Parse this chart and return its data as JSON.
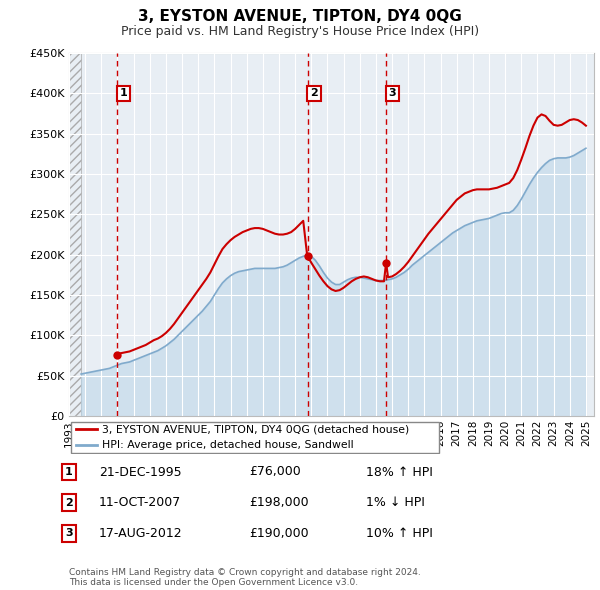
{
  "title": "3, EYSTON AVENUE, TIPTON, DY4 0QG",
  "subtitle": "Price paid vs. HM Land Registry's House Price Index (HPI)",
  "legend_line1": "3, EYSTON AVENUE, TIPTON, DY4 0QG (detached house)",
  "legend_line2": "HPI: Average price, detached house, Sandwell",
  "sale_color": "#cc0000",
  "hpi_color": "#80aacc",
  "hpi_fill_color": "#b8d4e8",
  "hatch_color": "#cccccc",
  "grid_color": "#c8d8e8",
  "bg_color": "#e8eef4",
  "annotation_box_color": "#cc0000",
  "sales": [
    {
      "label": "1",
      "date": "21-DEC-1995",
      "price": 76000,
      "year_x": 1995.97,
      "pct": "18% ↑ HPI"
    },
    {
      "label": "2",
      "date": "11-OCT-2007",
      "price": 198000,
      "year_x": 2007.78,
      "pct": "1% ↓ HPI"
    },
    {
      "label": "3",
      "date": "17-AUG-2012",
      "price": 190000,
      "year_x": 2012.63,
      "pct": "10% ↑ HPI"
    }
  ],
  "ylim": [
    0,
    450000
  ],
  "yticks": [
    0,
    50000,
    100000,
    150000,
    200000,
    250000,
    300000,
    350000,
    400000,
    450000
  ],
  "ytick_labels": [
    "£0",
    "£50K",
    "£100K",
    "£150K",
    "£200K",
    "£250K",
    "£300K",
    "£350K",
    "£400K",
    "£450K"
  ],
  "xlim_start": 1993.0,
  "xlim_end": 2025.5,
  "hatch_end": 1993.75,
  "footer": "Contains HM Land Registry data © Crown copyright and database right 2024.\nThis data is licensed under the Open Government Licence v3.0.",
  "hpi_data": [
    [
      1993.75,
      52000
    ],
    [
      1994.0,
      53000
    ],
    [
      1994.25,
      54000
    ],
    [
      1994.5,
      55000
    ],
    [
      1994.75,
      56000
    ],
    [
      1995.0,
      57000
    ],
    [
      1995.25,
      58000
    ],
    [
      1995.5,
      59000
    ],
    [
      1995.75,
      61000
    ],
    [
      1996.0,
      63000
    ],
    [
      1996.25,
      65000
    ],
    [
      1996.5,
      66000
    ],
    [
      1996.75,
      67000
    ],
    [
      1997.0,
      69000
    ],
    [
      1997.25,
      71000
    ],
    [
      1997.5,
      73000
    ],
    [
      1997.75,
      75000
    ],
    [
      1998.0,
      77000
    ],
    [
      1998.25,
      79000
    ],
    [
      1998.5,
      81000
    ],
    [
      1998.75,
      84000
    ],
    [
      1999.0,
      87000
    ],
    [
      1999.25,
      91000
    ],
    [
      1999.5,
      95000
    ],
    [
      1999.75,
      100000
    ],
    [
      2000.0,
      105000
    ],
    [
      2000.25,
      110000
    ],
    [
      2000.5,
      115000
    ],
    [
      2000.75,
      120000
    ],
    [
      2001.0,
      125000
    ],
    [
      2001.25,
      130000
    ],
    [
      2001.5,
      136000
    ],
    [
      2001.75,
      142000
    ],
    [
      2002.0,
      150000
    ],
    [
      2002.25,
      158000
    ],
    [
      2002.5,
      165000
    ],
    [
      2002.75,
      170000
    ],
    [
      2003.0,
      174000
    ],
    [
      2003.25,
      177000
    ],
    [
      2003.5,
      179000
    ],
    [
      2003.75,
      180000
    ],
    [
      2004.0,
      181000
    ],
    [
      2004.25,
      182000
    ],
    [
      2004.5,
      183000
    ],
    [
      2004.75,
      183000
    ],
    [
      2005.0,
      183000
    ],
    [
      2005.25,
      183000
    ],
    [
      2005.5,
      183000
    ],
    [
      2005.75,
      183000
    ],
    [
      2006.0,
      184000
    ],
    [
      2006.25,
      185000
    ],
    [
      2006.5,
      187000
    ],
    [
      2006.75,
      190000
    ],
    [
      2007.0,
      193000
    ],
    [
      2007.25,
      196000
    ],
    [
      2007.5,
      198000
    ],
    [
      2007.75,
      199000
    ],
    [
      2008.0,
      198000
    ],
    [
      2008.25,
      193000
    ],
    [
      2008.5,
      186000
    ],
    [
      2008.75,
      178000
    ],
    [
      2009.0,
      171000
    ],
    [
      2009.25,
      166000
    ],
    [
      2009.5,
      163000
    ],
    [
      2009.75,
      163000
    ],
    [
      2010.0,
      166000
    ],
    [
      2010.25,
      169000
    ],
    [
      2010.5,
      171000
    ],
    [
      2010.75,
      172000
    ],
    [
      2011.0,
      172000
    ],
    [
      2011.25,
      171000
    ],
    [
      2011.5,
      170000
    ],
    [
      2011.75,
      169000
    ],
    [
      2012.0,
      168000
    ],
    [
      2012.25,
      168000
    ],
    [
      2012.5,
      168000
    ],
    [
      2012.75,
      169000
    ],
    [
      2013.0,
      170000
    ],
    [
      2013.25,
      172000
    ],
    [
      2013.5,
      175000
    ],
    [
      2013.75,
      178000
    ],
    [
      2014.0,
      182000
    ],
    [
      2014.25,
      187000
    ],
    [
      2014.5,
      191000
    ],
    [
      2014.75,
      195000
    ],
    [
      2015.0,
      199000
    ],
    [
      2015.25,
      203000
    ],
    [
      2015.5,
      207000
    ],
    [
      2015.75,
      211000
    ],
    [
      2016.0,
      215000
    ],
    [
      2016.25,
      219000
    ],
    [
      2016.5,
      223000
    ],
    [
      2016.75,
      227000
    ],
    [
      2017.0,
      230000
    ],
    [
      2017.25,
      233000
    ],
    [
      2017.5,
      236000
    ],
    [
      2017.75,
      238000
    ],
    [
      2018.0,
      240000
    ],
    [
      2018.25,
      242000
    ],
    [
      2018.5,
      243000
    ],
    [
      2018.75,
      244000
    ],
    [
      2019.0,
      245000
    ],
    [
      2019.25,
      247000
    ],
    [
      2019.5,
      249000
    ],
    [
      2019.75,
      251000
    ],
    [
      2020.0,
      252000
    ],
    [
      2020.25,
      252000
    ],
    [
      2020.5,
      255000
    ],
    [
      2020.75,
      261000
    ],
    [
      2021.0,
      269000
    ],
    [
      2021.25,
      278000
    ],
    [
      2021.5,
      287000
    ],
    [
      2021.75,
      295000
    ],
    [
      2022.0,
      302000
    ],
    [
      2022.25,
      308000
    ],
    [
      2022.5,
      313000
    ],
    [
      2022.75,
      317000
    ],
    [
      2023.0,
      319000
    ],
    [
      2023.25,
      320000
    ],
    [
      2023.5,
      320000
    ],
    [
      2023.75,
      320000
    ],
    [
      2024.0,
      321000
    ],
    [
      2024.25,
      323000
    ],
    [
      2024.5,
      326000
    ],
    [
      2024.75,
      329000
    ],
    [
      2025.0,
      332000
    ]
  ],
  "price_data": [
    [
      1995.97,
      76000
    ],
    [
      1996.0,
      77000
    ],
    [
      1996.25,
      78000
    ],
    [
      1996.5,
      79000
    ],
    [
      1996.75,
      80000
    ],
    [
      1997.0,
      82000
    ],
    [
      1997.25,
      84000
    ],
    [
      1997.5,
      86000
    ],
    [
      1997.75,
      88000
    ],
    [
      1998.0,
      91000
    ],
    [
      1998.25,
      94000
    ],
    [
      1998.5,
      96000
    ],
    [
      1998.75,
      99000
    ],
    [
      1999.0,
      103000
    ],
    [
      1999.25,
      108000
    ],
    [
      1999.5,
      114000
    ],
    [
      1999.75,
      121000
    ],
    [
      2000.0,
      128000
    ],
    [
      2000.25,
      135000
    ],
    [
      2000.5,
      142000
    ],
    [
      2000.75,
      149000
    ],
    [
      2001.0,
      156000
    ],
    [
      2001.25,
      163000
    ],
    [
      2001.5,
      170000
    ],
    [
      2001.75,
      178000
    ],
    [
      2002.0,
      188000
    ],
    [
      2002.25,
      198000
    ],
    [
      2002.5,
      207000
    ],
    [
      2002.75,
      213000
    ],
    [
      2003.0,
      218000
    ],
    [
      2003.25,
      222000
    ],
    [
      2003.5,
      225000
    ],
    [
      2003.75,
      228000
    ],
    [
      2004.0,
      230000
    ],
    [
      2004.25,
      232000
    ],
    [
      2004.5,
      233000
    ],
    [
      2004.75,
      233000
    ],
    [
      2005.0,
      232000
    ],
    [
      2005.25,
      230000
    ],
    [
      2005.5,
      228000
    ],
    [
      2005.75,
      226000
    ],
    [
      2006.0,
      225000
    ],
    [
      2006.25,
      225000
    ],
    [
      2006.5,
      226000
    ],
    [
      2006.75,
      228000
    ],
    [
      2007.0,
      232000
    ],
    [
      2007.25,
      237000
    ],
    [
      2007.5,
      242000
    ],
    [
      2007.75,
      198000
    ],
    [
      2007.78,
      198000
    ],
    [
      2008.0,
      190000
    ],
    [
      2008.25,
      182000
    ],
    [
      2008.5,
      174000
    ],
    [
      2008.75,
      167000
    ],
    [
      2009.0,
      161000
    ],
    [
      2009.25,
      157000
    ],
    [
      2009.5,
      155000
    ],
    [
      2009.75,
      156000
    ],
    [
      2010.0,
      159000
    ],
    [
      2010.25,
      163000
    ],
    [
      2010.5,
      167000
    ],
    [
      2010.75,
      170000
    ],
    [
      2011.0,
      172000
    ],
    [
      2011.25,
      173000
    ],
    [
      2011.5,
      172000
    ],
    [
      2011.75,
      170000
    ],
    [
      2012.0,
      168000
    ],
    [
      2012.25,
      167000
    ],
    [
      2012.5,
      167000
    ],
    [
      2012.63,
      190000
    ],
    [
      2012.75,
      172000
    ],
    [
      2013.0,
      173000
    ],
    [
      2013.25,
      176000
    ],
    [
      2013.5,
      180000
    ],
    [
      2013.75,
      185000
    ],
    [
      2014.0,
      191000
    ],
    [
      2014.25,
      198000
    ],
    [
      2014.5,
      205000
    ],
    [
      2014.75,
      212000
    ],
    [
      2015.0,
      219000
    ],
    [
      2015.25,
      226000
    ],
    [
      2015.5,
      232000
    ],
    [
      2015.75,
      238000
    ],
    [
      2016.0,
      244000
    ],
    [
      2016.25,
      250000
    ],
    [
      2016.5,
      256000
    ],
    [
      2016.75,
      262000
    ],
    [
      2017.0,
      268000
    ],
    [
      2017.25,
      272000
    ],
    [
      2017.5,
      276000
    ],
    [
      2017.75,
      278000
    ],
    [
      2018.0,
      280000
    ],
    [
      2018.25,
      281000
    ],
    [
      2018.5,
      281000
    ],
    [
      2018.75,
      281000
    ],
    [
      2019.0,
      281000
    ],
    [
      2019.25,
      282000
    ],
    [
      2019.5,
      283000
    ],
    [
      2019.75,
      285000
    ],
    [
      2020.0,
      287000
    ],
    [
      2020.25,
      289000
    ],
    [
      2020.5,
      295000
    ],
    [
      2020.75,
      305000
    ],
    [
      2021.0,
      318000
    ],
    [
      2021.25,
      332000
    ],
    [
      2021.5,
      347000
    ],
    [
      2021.75,
      360000
    ],
    [
      2022.0,
      370000
    ],
    [
      2022.25,
      374000
    ],
    [
      2022.5,
      372000
    ],
    [
      2022.75,
      366000
    ],
    [
      2023.0,
      361000
    ],
    [
      2023.25,
      360000
    ],
    [
      2023.5,
      361000
    ],
    [
      2023.75,
      364000
    ],
    [
      2024.0,
      367000
    ],
    [
      2024.25,
      368000
    ],
    [
      2024.5,
      367000
    ],
    [
      2024.75,
      364000
    ],
    [
      2025.0,
      360000
    ]
  ]
}
